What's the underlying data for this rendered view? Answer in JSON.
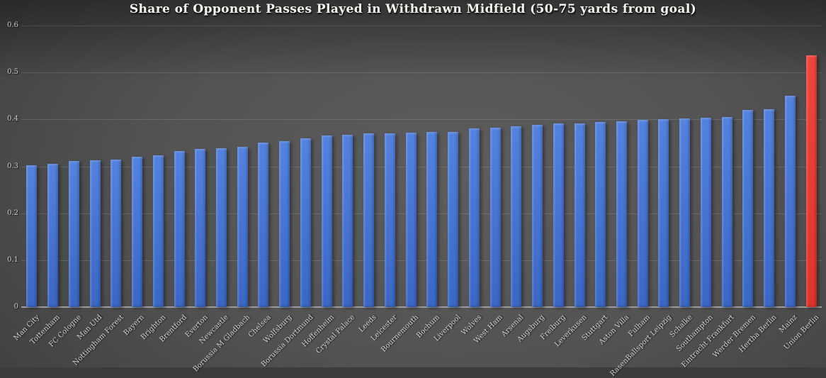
{
  "title": "Share of Opponent Passes Played in Withdrawn Midfield (50-75 yards from goal)",
  "chart_data": {
    "type": "bar",
    "title": "Share of Opponent Passes Played in Withdrawn Midfield (50-75 yards from goal)",
    "xlabel": "",
    "ylabel": "",
    "ylim": [
      0,
      0.6
    ],
    "grid": true,
    "legend": false,
    "ytick_labels": [
      "0",
      "0.1",
      "0.2",
      "0.3",
      "0.4",
      "0.5",
      "0.6"
    ],
    "ytick_values": [
      0,
      0.1,
      0.2,
      0.3,
      0.4,
      0.5,
      0.6
    ],
    "categories": [
      "Man City",
      "Tottenham",
      "FC Cologne",
      "Man Utd",
      "Nottingham Forest",
      "Bayern",
      "Brighton",
      "Brentford",
      "Everton",
      "Newcastle",
      "Borussia M Gladbach",
      "Chelsea",
      "Wolfsburg",
      "Borussia Dortmund",
      "Hoffenheim",
      "Crystal Palace",
      "Leeds",
      "Leicester",
      "Bournemouth",
      "Bochum",
      "Liverpool",
      "Wolves",
      "West Ham",
      "Arsenal",
      "Augsburg",
      "Freiburg",
      "Leverkusen",
      "Stuttgart",
      "Aston Villa",
      "Fulham",
      "RasenBallsport Leipzig",
      "Schalke",
      "Southampton",
      "Eintracht Frankfurt",
      "Werder Bremen",
      "Hertha Berlin",
      "Mainz",
      "Union Berlin"
    ],
    "values": [
      0.302,
      0.306,
      0.311,
      0.313,
      0.315,
      0.321,
      0.324,
      0.333,
      0.337,
      0.339,
      0.342,
      0.35,
      0.353,
      0.359,
      0.366,
      0.368,
      0.37,
      0.37,
      0.372,
      0.373,
      0.374,
      0.381,
      0.382,
      0.385,
      0.389,
      0.391,
      0.392,
      0.394,
      0.396,
      0.399,
      0.4,
      0.402,
      0.404,
      0.405,
      0.42,
      0.421,
      0.45,
      0.537
    ],
    "highlight_category": "Union Berlin",
    "bar_color_top": "#5382e0",
    "bar_color_bottom": "#3a66c6",
    "highlight_color_top": "#ef463b",
    "highlight_color_bottom": "#dd342c"
  }
}
